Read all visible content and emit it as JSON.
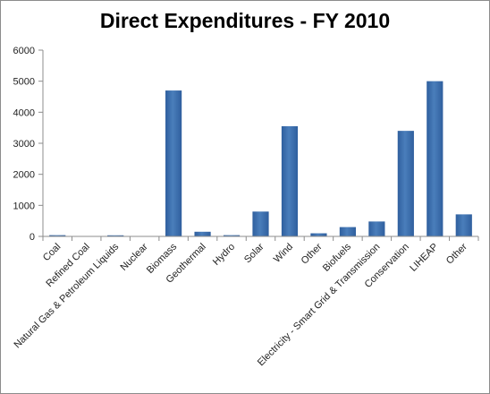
{
  "chart_data": {
    "type": "bar",
    "title": "Direct Expenditures - FY 2010",
    "xlabel": "",
    "ylabel": "",
    "ylim": [
      0,
      6000
    ],
    "yticks": [
      0,
      1000,
      2000,
      3000,
      4000,
      5000,
      6000
    ],
    "grid": false,
    "legend": "none",
    "categories": [
      "Coal",
      "Refined Coal",
      "Natural Gas & Petroleum Liquids",
      "Nuclear",
      "Biomass",
      "Geothermal",
      "Hydro",
      "Solar",
      "Wind",
      "Other",
      "Biofuels",
      "Electricity - Smart Grid & Transmission",
      "Conservation",
      "LIHEAP",
      "Other"
    ],
    "values": [
      40,
      5,
      35,
      5,
      4700,
      150,
      40,
      800,
      3550,
      100,
      300,
      480,
      3400,
      5000,
      710
    ],
    "bar_color": "#4a7ebb"
  }
}
